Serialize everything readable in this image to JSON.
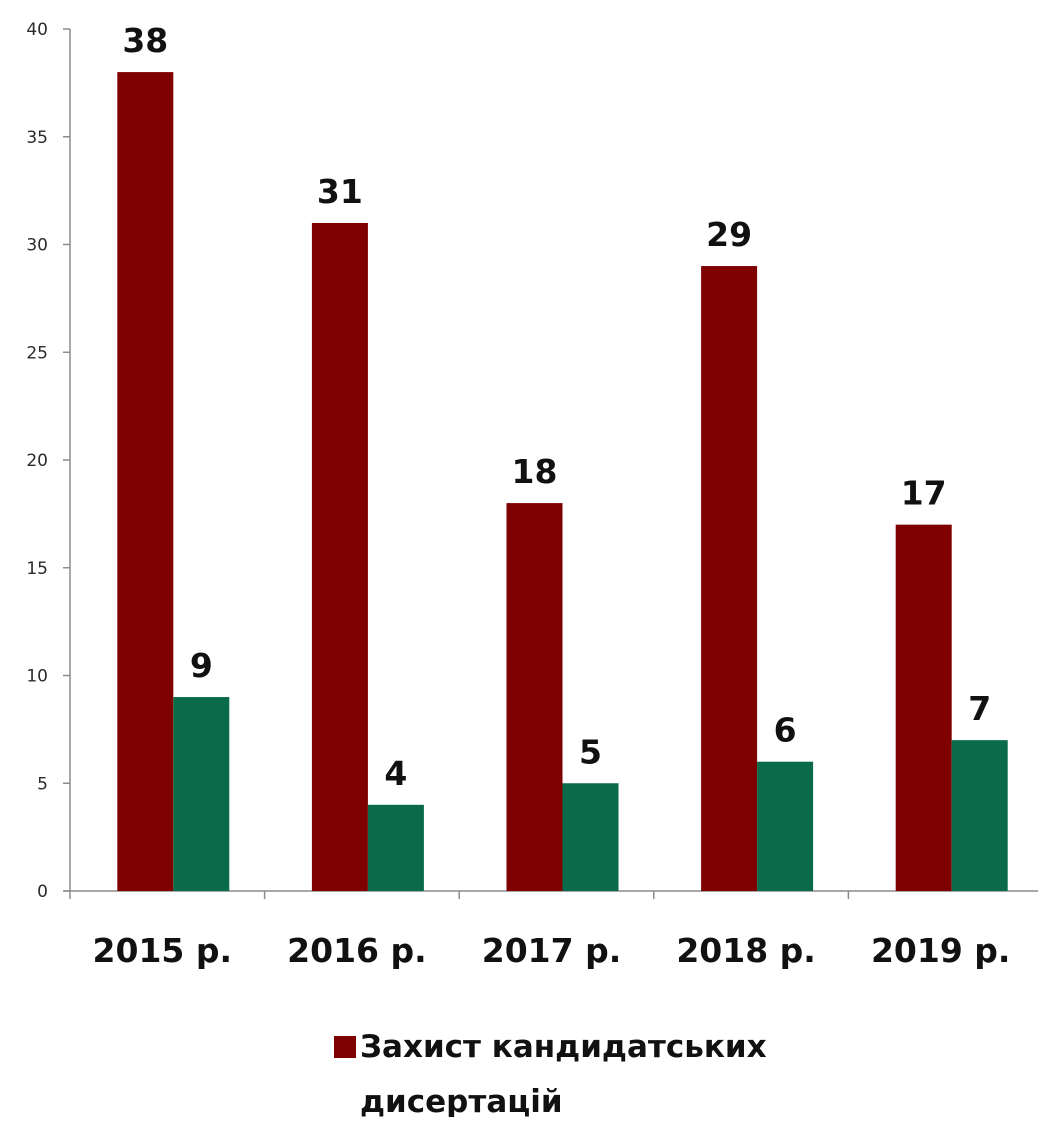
{
  "chart_data": {
    "type": "bar",
    "title": "",
    "xlabel": "",
    "ylabel": "",
    "categories": [
      "2015 р.",
      "2016 р.",
      "2017 р.",
      "2018 р.",
      "2019 р."
    ],
    "series": [
      {
        "name": "Захист кандидатських дисертацій",
        "values": [
          38,
          31,
          18,
          29,
          17
        ],
        "color": "#7f0000"
      },
      {
        "values": [
          9,
          4,
          5,
          6,
          7
        ],
        "color": "#0a6b4a"
      }
    ],
    "ylim": [
      0,
      40
    ],
    "yticks": [
      0,
      5,
      10,
      15,
      20,
      25,
      30,
      35,
      40
    ],
    "grid": false,
    "data_labels": true,
    "legend": {
      "placement": "bottom",
      "lines": [
        "Захист кандидатських",
        "дисертацій"
      ]
    }
  }
}
